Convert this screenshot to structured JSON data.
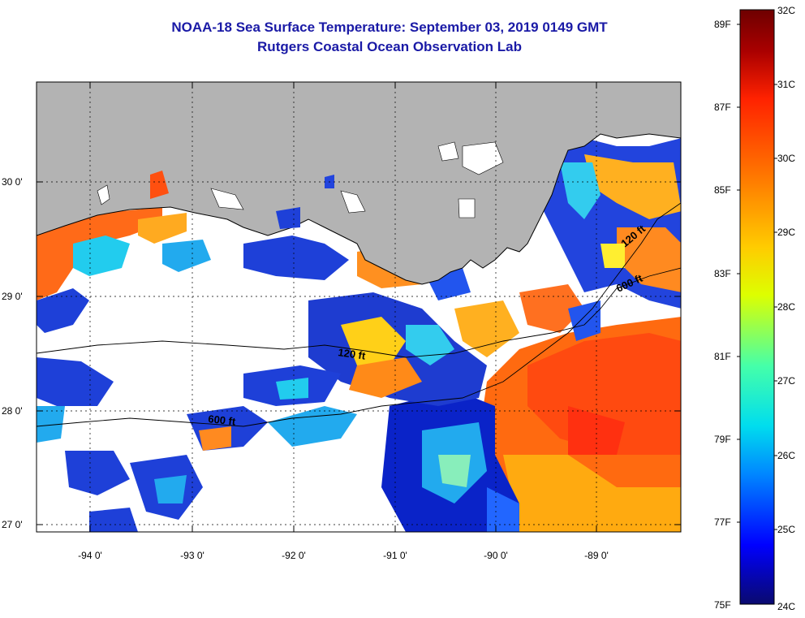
{
  "header": {
    "title": "NOAA-18 Sea Surface Temperature:  September 03, 2019 0149 GMT",
    "subtitle": "Rutgers Coastal Ocean Observation Lab"
  },
  "map": {
    "lon_ticks": [
      "-94 0'",
      "-93 0'",
      "-92 0'",
      "-91 0'",
      "-90 0'",
      "-89 0'"
    ],
    "lat_ticks": [
      "30 0'",
      "29 0'",
      "28 0'",
      "27 0'"
    ],
    "contour_labels": [
      "120 ft",
      "600 ft",
      "600 ft",
      "120 ft"
    ],
    "colors": {
      "land": "#b3b3b3",
      "cloud": "#ffffff",
      "frame": "#000000"
    }
  },
  "colorbar": {
    "fahrenheit_labels": [
      "89F",
      "87F",
      "85F",
      "83F",
      "81F",
      "79F",
      "77F",
      "75F"
    ],
    "celsius_labels": [
      "32C",
      "31C",
      "30C",
      "29C",
      "28C",
      "27C",
      "26C",
      "25C",
      "24C"
    ],
    "colors": [
      "#0a0a6e",
      "#0000ff",
      "#0088ff",
      "#00ddee",
      "#44ffaa",
      "#ddff00",
      "#ffcc00",
      "#ff7700",
      "#ff2200",
      "#aa0000",
      "#6e0000"
    ]
  }
}
